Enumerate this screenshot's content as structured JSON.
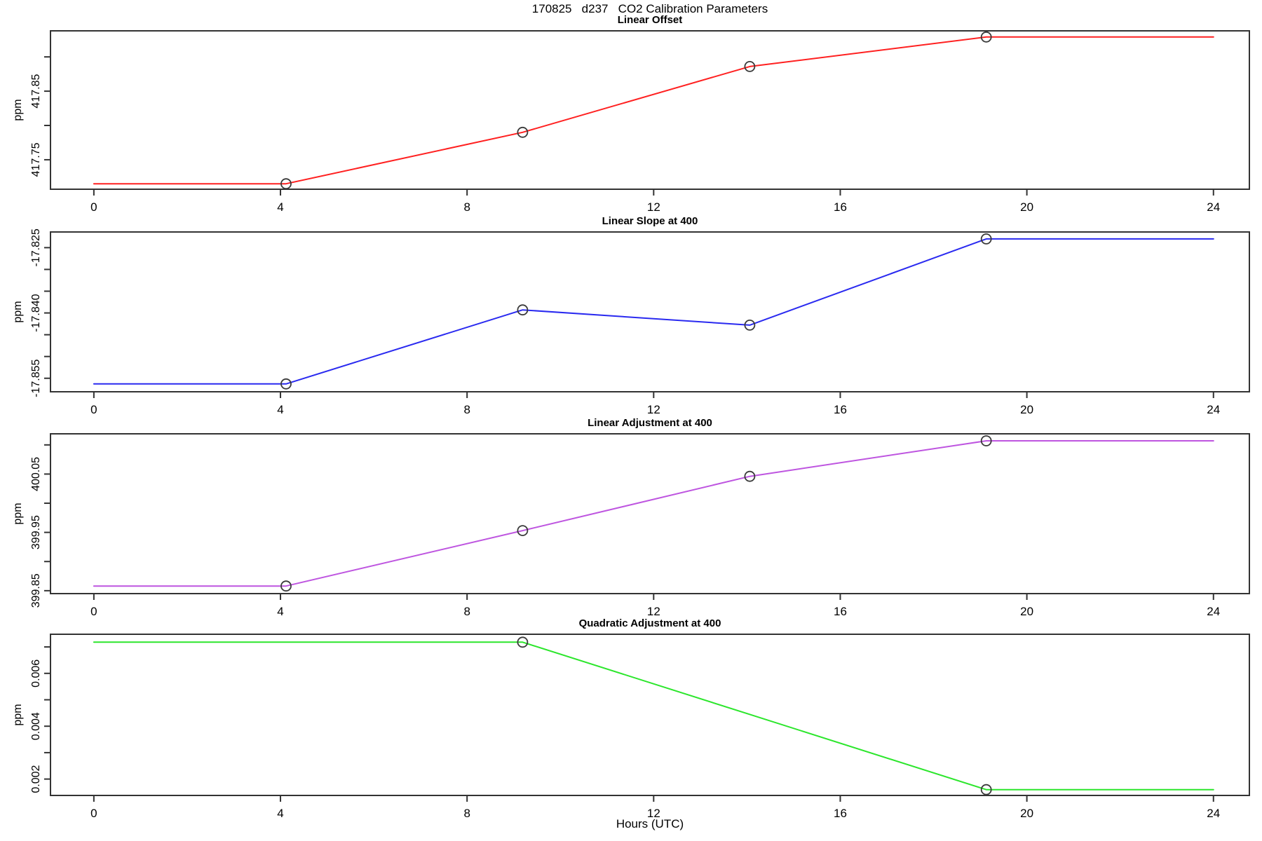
{
  "chart_data": {
    "type": "line",
    "title": "170825   d237   CO2 Calibration Parameters",
    "xlabel": "Hours (UTC)",
    "x_ticks": [
      0,
      4,
      8,
      12,
      16,
      20,
      24
    ],
    "xlim": [
      -0.93,
      24.77
    ],
    "grid": false,
    "legend": "none",
    "point_style": {
      "shape": "open-circle",
      "color": "#3a3a3a"
    },
    "charts": [
      {
        "title": "Linear Offset",
        "ylabel": "ppm",
        "color": "#ff2020",
        "ylim": [
          417.707,
          417.938
        ],
        "y_ticks": [
          {
            "v": 417.75,
            "label": "417.75"
          },
          {
            "v": 417.8,
            "label": ""
          },
          {
            "v": 417.85,
            "label": "417.85"
          },
          {
            "v": 417.9,
            "label": ""
          }
        ],
        "line": {
          "x": [
            0,
            4.12,
            9.19,
            14.06,
            19.13,
            24
          ],
          "y": [
            417.715,
            417.715,
            417.79,
            417.886,
            417.929,
            417.929
          ]
        },
        "points": {
          "x": [
            4.12,
            9.19,
            14.06,
            19.13
          ],
          "y": [
            417.715,
            417.79,
            417.886,
            417.929
          ]
        }
      },
      {
        "title": "Linear Slope at 400",
        "ylabel": "ppm",
        "color": "#2a2af0",
        "ylim": [
          -17.8581,
          -17.8214
        ],
        "y_ticks": [
          {
            "v": -17.855,
            "label": "-17.855"
          },
          {
            "v": -17.85,
            "label": ""
          },
          {
            "v": -17.845,
            "label": ""
          },
          {
            "v": -17.84,
            "label": "-17.840"
          },
          {
            "v": -17.835,
            "label": ""
          },
          {
            "v": -17.83,
            "label": ""
          },
          {
            "v": -17.825,
            "label": "-17.825"
          }
        ],
        "line": {
          "x": [
            0,
            4.12,
            9.19,
            14.06,
            19.13,
            24
          ],
          "y": [
            -17.8563,
            -17.8563,
            -17.8393,
            -17.8428,
            -17.823,
            -17.823
          ]
        },
        "points": {
          "x": [
            4.12,
            9.19,
            14.06,
            19.13
          ],
          "y": [
            -17.8563,
            -17.8393,
            -17.8428,
            -17.823
          ]
        }
      },
      {
        "title": "Linear Adjustment at 400",
        "ylabel": "ppm",
        "color": "#be55e0",
        "ylim": [
          399.845,
          400.119
        ],
        "y_ticks": [
          {
            "v": 399.85,
            "label": "399.85"
          },
          {
            "v": 399.9,
            "label": ""
          },
          {
            "v": 399.95,
            "label": "399.95"
          },
          {
            "v": 400.0,
            "label": ""
          },
          {
            "v": 400.05,
            "label": "400.05"
          },
          {
            "v": 400.1,
            "label": ""
          }
        ],
        "line": {
          "x": [
            0,
            4.12,
            9.19,
            14.06,
            19.13,
            24
          ],
          "y": [
            399.858,
            399.858,
            399.953,
            400.046,
            400.107,
            400.107
          ]
        },
        "points": {
          "x": [
            4.12,
            9.19,
            14.06,
            19.13
          ],
          "y": [
            399.858,
            399.953,
            400.046,
            400.107
          ]
        }
      },
      {
        "title": "Quadratic Adjustment at 400",
        "ylabel": "ppm",
        "color": "#2ce62c",
        "ylim": [
          0.00138,
          0.00748
        ],
        "y_ticks": [
          {
            "v": 0.002,
            "label": "0.002"
          },
          {
            "v": 0.003,
            "label": ""
          },
          {
            "v": 0.004,
            "label": "0.004"
          },
          {
            "v": 0.005,
            "label": ""
          },
          {
            "v": 0.006,
            "label": "0.006"
          },
          {
            "v": 0.007,
            "label": ""
          }
        ],
        "line": {
          "x": [
            0,
            9.19,
            19.13,
            24
          ],
          "y": [
            0.00718,
            0.00718,
            0.0016,
            0.0016
          ]
        },
        "points": {
          "x": [
            9.19,
            19.13
          ],
          "y": [
            0.00718,
            0.0016
          ]
        }
      }
    ]
  }
}
